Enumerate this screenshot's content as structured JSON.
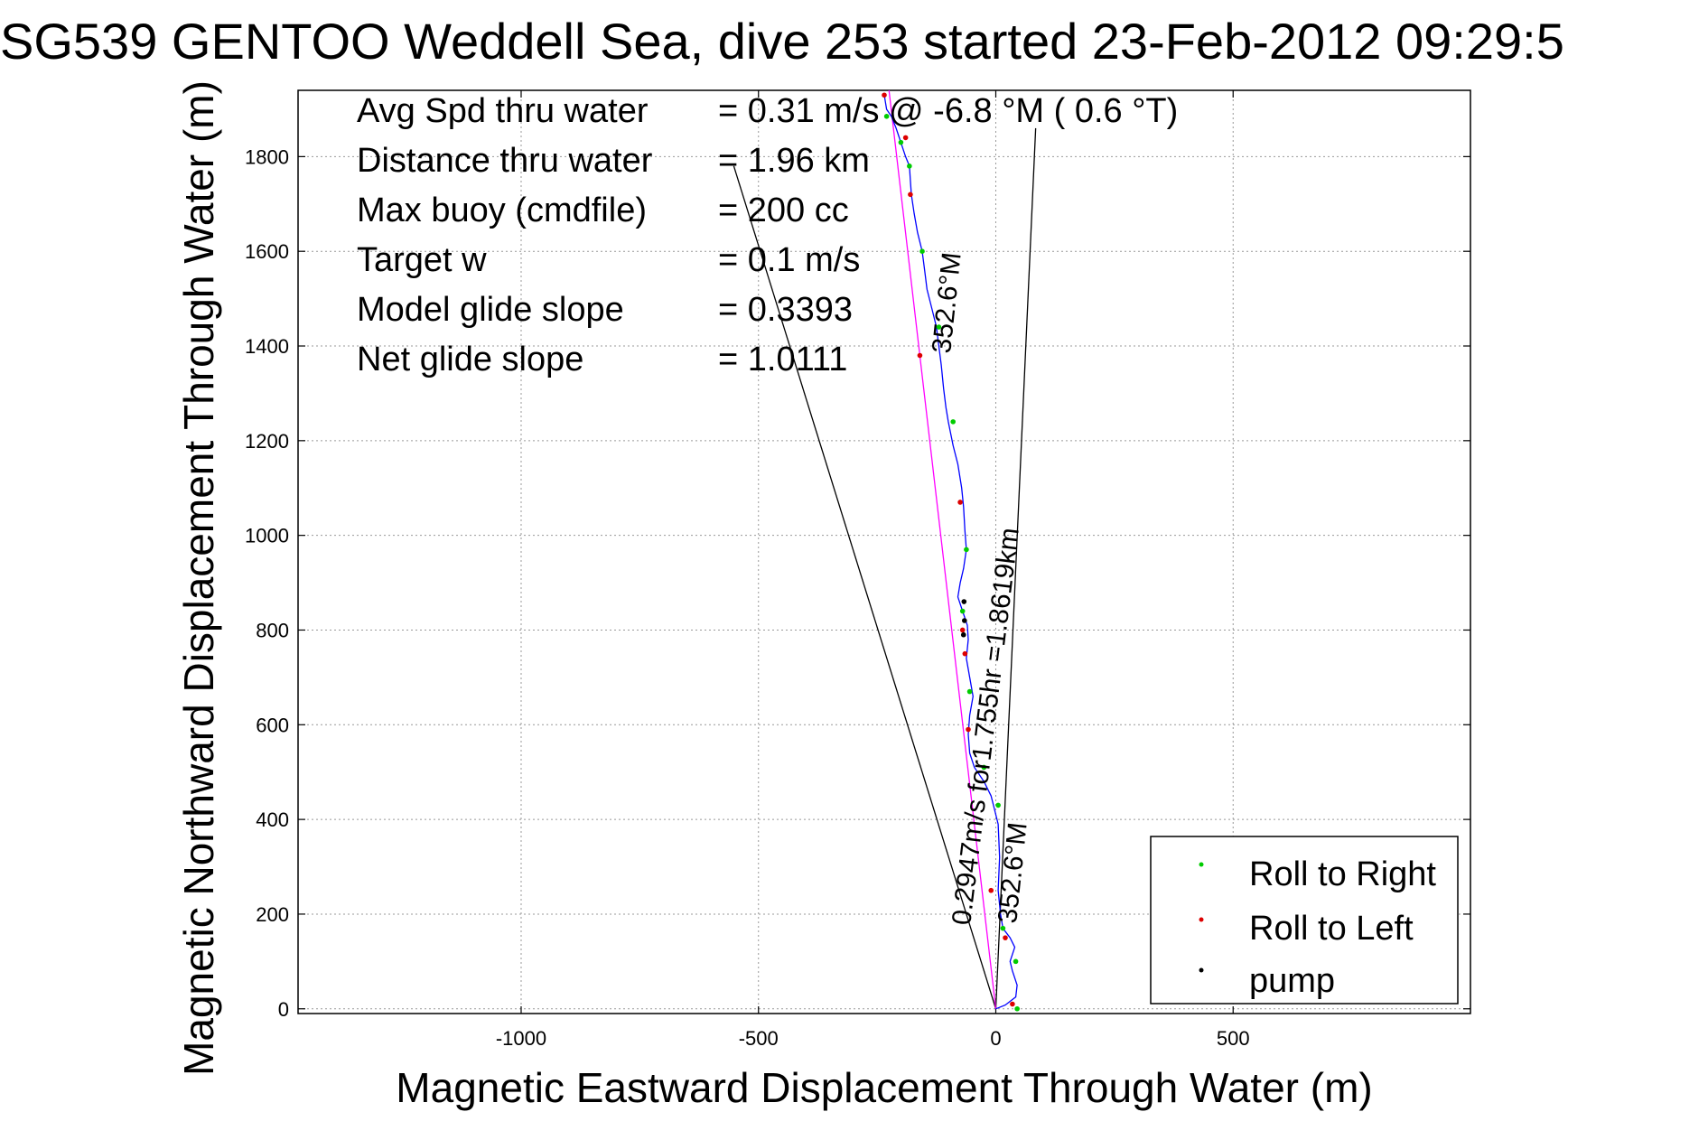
{
  "chart_data": {
    "type": "line",
    "title": "SG539 GENTOO Weddell Sea, dive 253 started 23-Feb-2012 09:29:5",
    "xlabel": "Magnetic Eastward Displacement Through Water (m)",
    "ylabel": "Magnetic Northward Displacement Through Water (m)",
    "xlim": [
      -1470,
      1000
    ],
    "ylim": [
      -10,
      1940
    ],
    "xticks": [
      -1000,
      -500,
      0,
      500
    ],
    "yticks": [
      0,
      200,
      400,
      600,
      800,
      1000,
      1200,
      1400,
      1600,
      1800
    ],
    "grid": true,
    "legend_position": "bottom-right",
    "info_lines": [
      {
        "label": "Avg Spd thru water",
        "value": "=  0.31 m/s @  -6.8 °M (  0.6 °T)"
      },
      {
        "label": "Distance thru water",
        "value": "=  1.96 km"
      },
      {
        "label": "Max buoy (cmdfile)",
        "value": "= 200 cc"
      },
      {
        "label": "Target w",
        "value": "= 0.1 m/s"
      },
      {
        "label": "Model glide slope",
        "value": "= 0.3393"
      },
      {
        "label": "Net glide slope",
        "value": "= 1.0111"
      }
    ],
    "annotations": {
      "track_speed": "0.2947m/s for1.755hr =1.8619km",
      "heading_lower": "352.6°M",
      "heading_upper": "352.6°M"
    },
    "track": {
      "name": "track",
      "color": "#0000ff",
      "x": [
        0,
        20,
        42,
        45,
        35,
        30,
        40,
        30,
        15,
        10,
        5,
        8,
        5,
        -5,
        -10,
        -25,
        -45,
        -55,
        -58,
        -55,
        -48,
        -55,
        -62,
        -58,
        -60,
        -70,
        -80,
        -75,
        -68,
        -62,
        -65,
        -68,
        -72,
        -80,
        -90,
        -100,
        -105,
        -110,
        -115,
        -120,
        -125,
        -135,
        -145,
        -150,
        -155,
        -165,
        -172,
        -178,
        -180,
        -182,
        -190,
        -200,
        -210,
        -220,
        -230,
        -235
      ],
      "y": [
        0,
        8,
        25,
        50,
        80,
        100,
        130,
        150,
        170,
        200,
        250,
        320,
        390,
        430,
        450,
        480,
        510,
        540,
        580,
        620,
        660,
        700,
        740,
        780,
        810,
        840,
        870,
        900,
        930,
        970,
        1010,
        1060,
        1100,
        1150,
        1190,
        1240,
        1270,
        1310,
        1360,
        1400,
        1440,
        1480,
        1520,
        1560,
        1600,
        1640,
        1680,
        1720,
        1750,
        1780,
        1800,
        1830,
        1860,
        1885,
        1900,
        1930
      ]
    },
    "series": [
      {
        "name": "Roll to Right",
        "color": "#00cc00",
        "x": [
          45,
          42,
          15,
          5,
          -25,
          -55,
          -70,
          -62,
          -90,
          -120,
          -155,
          -182,
          -200,
          -230
        ],
        "y": [
          0,
          100,
          170,
          430,
          510,
          670,
          840,
          970,
          1240,
          1440,
          1600,
          1780,
          1830,
          1885
        ]
      },
      {
        "name": "Roll to Left",
        "color": "#dd0000",
        "x": [
          35,
          20,
          -10,
          -58,
          -65,
          -70,
          -75,
          -160,
          -180,
          -190,
          -235
        ],
        "y": [
          10,
          150,
          250,
          590,
          750,
          800,
          1070,
          1380,
          1720,
          1840,
          1930
        ]
      },
      {
        "name": "pump",
        "color": "#000000",
        "x": [
          -68,
          -66,
          -67
        ],
        "y": [
          790,
          820,
          860
        ]
      }
    ],
    "reference_lines": [
      {
        "name": "heading-line",
        "color": "#000000",
        "x": [
          0,
          84
        ],
        "y": [
          0,
          1860
        ]
      },
      {
        "name": "net-displacement-line",
        "color": "#000000",
        "x": [
          0,
          -552
        ],
        "y": [
          0,
          1780
        ]
      },
      {
        "name": "heading-track-line",
        "color": "#ff00ff",
        "x": [
          0,
          -225
        ],
        "y": [
          0,
          1940
        ]
      }
    ]
  }
}
